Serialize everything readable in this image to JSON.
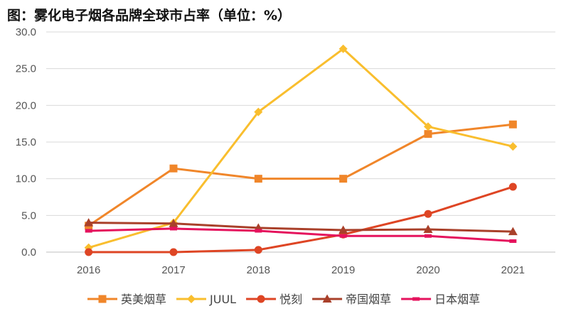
{
  "chart_data": {
    "type": "line",
    "title": "图：雾化电子烟各品牌全球市占率（单位：%）",
    "xlabel": "",
    "ylabel": "",
    "categories": [
      "2016",
      "2017",
      "2018",
      "2019",
      "2020",
      "2021"
    ],
    "ylim": [
      0,
      30
    ],
    "yticks": [
      0,
      5,
      10,
      15,
      20,
      25,
      30
    ],
    "ytick_labels": [
      "0.0",
      "5.0",
      "10.0",
      "15.0",
      "20.0",
      "25.0",
      "30.0"
    ],
    "grid": true,
    "legend_position": "bottom",
    "series": [
      {
        "name": "英美烟草",
        "marker": "square",
        "color": "#F0862A",
        "values": [
          3.6,
          11.4,
          10.0,
          10.0,
          16.1,
          17.4
        ]
      },
      {
        "name": "JUUL",
        "marker": "diamond",
        "color": "#F9BE2E",
        "values": [
          0.6,
          4.0,
          19.1,
          27.7,
          17.1,
          14.4
        ]
      },
      {
        "name": "悦刻",
        "marker": "circle",
        "color": "#DE4524",
        "values": [
          0.0,
          0.0,
          0.3,
          2.4,
          5.2,
          8.9
        ]
      },
      {
        "name": "帝国烟草",
        "marker": "triangle",
        "color": "#A9402A",
        "values": [
          4.0,
          3.9,
          3.3,
          3.0,
          3.1,
          2.8
        ]
      },
      {
        "name": "日本烟草",
        "marker": "dash",
        "color": "#E5135D",
        "values": [
          2.9,
          3.2,
          2.9,
          2.2,
          2.2,
          1.5
        ]
      }
    ]
  }
}
